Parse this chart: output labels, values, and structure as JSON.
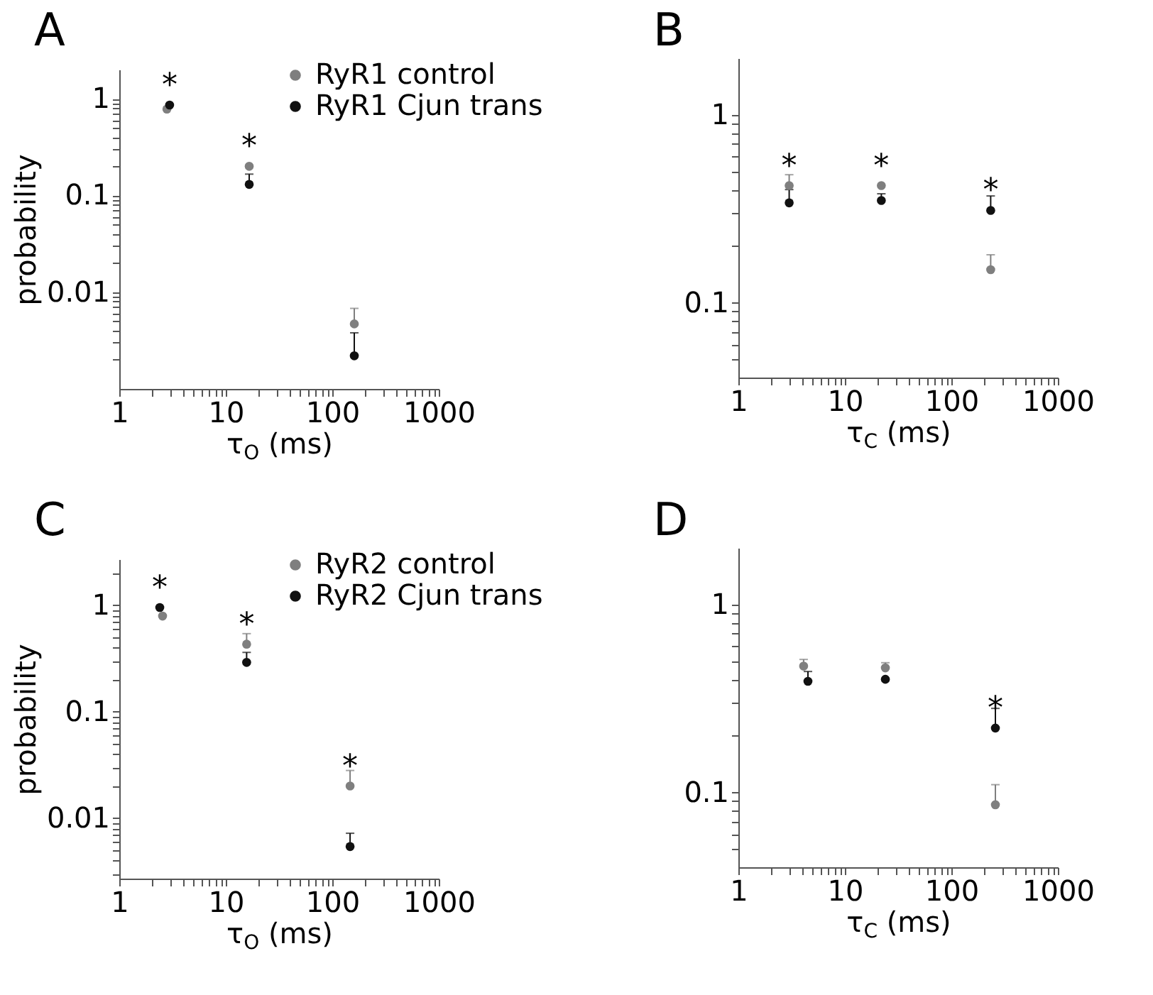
{
  "chart_data": [
    {
      "type": "scatter",
      "title": "A",
      "xlabel": "τ$_{O}$ (ms)",
      "ylabel": "probability",
      "log": "xy",
      "grid": false,
      "legend": "top right",
      "marker": "circle",
      "xlim": [
        1,
        1000
      ],
      "ylim": [
        0.001,
        2
      ],
      "xticks": [
        1,
        {
          "value": 2,
          "label": null
        },
        {
          "value": 3,
          "label": null
        },
        {
          "value": 4,
          "label": null
        },
        {
          "value": 5,
          "label": null
        },
        {
          "value": 6,
          "label": null
        },
        {
          "value": 7,
          "label": null
        },
        {
          "value": 8,
          "label": null
        },
        {
          "value": 9,
          "label": null
        },
        10,
        {
          "value": 20,
          "label": null
        },
        {
          "value": 30,
          "label": null
        },
        {
          "value": 40,
          "label": null
        },
        {
          "value": 50,
          "label": null
        },
        {
          "value": 60,
          "label": null
        },
        {
          "value": 70,
          "label": null
        },
        {
          "value": 80,
          "label": null
        },
        {
          "value": 90,
          "label": null
        },
        100,
        {
          "value": 200,
          "label": null
        },
        {
          "value": 300,
          "label": null
        },
        {
          "value": 400,
          "label": null
        },
        {
          "value": 500,
          "label": null
        },
        {
          "value": 600,
          "label": null
        },
        {
          "value": 700,
          "label": null
        },
        {
          "value": 800,
          "label": null
        },
        {
          "value": 900,
          "label": null
        },
        1000
      ],
      "yticks": [
        {
          "value": 0.002,
          "label": null
        },
        {
          "value": 0.003,
          "label": null
        },
        {
          "value": 0.004,
          "label": null
        },
        {
          "value": 0.005,
          "label": null
        },
        {
          "value": 0.006,
          "label": null
        },
        {
          "value": 0.007,
          "label": null
        },
        {
          "value": 0.008,
          "label": null
        },
        {
          "value": 0.009,
          "label": null
        },
        0.01,
        {
          "value": 0.02,
          "label": null
        },
        {
          "value": 0.03,
          "label": null
        },
        {
          "value": 0.04,
          "label": null
        },
        {
          "value": 0.05,
          "label": null
        },
        {
          "value": 0.06,
          "label": null
        },
        {
          "value": 0.07,
          "label": null
        },
        {
          "value": 0.08,
          "label": null
        },
        {
          "value": 0.09,
          "label": null
        },
        0.1,
        {
          "value": 0.2,
          "label": null
        },
        {
          "value": 0.3,
          "label": null
        },
        {
          "value": 0.4,
          "label": null
        },
        {
          "value": 0.5,
          "label": null
        },
        {
          "value": 0.6,
          "label": null
        },
        {
          "value": 0.7,
          "label": null
        },
        {
          "value": 0.8,
          "label": null
        },
        {
          "value": 0.9,
          "label": null
        },
        1
      ],
      "series": [
        {
          "name": "RyR1 control",
          "color": "#7f7f7f",
          "x": [
            2.8,
            16.6,
            161
          ],
          "values": [
            0.78,
            0.2,
            0.0047
          ],
          "errors": [
            null,
            null,
            [
              0.0047,
              0.0068
            ]
          ]
        },
        {
          "name": "RyR1 Cjun trans",
          "color": "#111111",
          "x": [
            2.97,
            16.6,
            161
          ],
          "values": [
            0.86,
            0.13,
            0.0022
          ],
          "errors": [
            null,
            [
              0.13,
              0.166
            ],
            [
              0.0022,
              0.0038
            ]
          ]
        }
      ],
      "annotations": [
        {
          "text": "*",
          "x": 2.97,
          "y": 0.86
        },
        {
          "text": "*",
          "x": 16.6,
          "y": 0.2
        }
      ]
    },
    {
      "type": "scatter",
      "title": "B",
      "xlabel": "τ$_{C}$ (ms)",
      "log": "xy",
      "grid": false,
      "marker": "circle",
      "xlim": [
        1,
        1000
      ],
      "ylim": [
        0.04,
        2
      ],
      "xticks": [
        1,
        {
          "value": 2,
          "label": null
        },
        {
          "value": 3,
          "label": null
        },
        {
          "value": 4,
          "label": null
        },
        {
          "value": 5,
          "label": null
        },
        {
          "value": 6,
          "label": null
        },
        {
          "value": 7,
          "label": null
        },
        {
          "value": 8,
          "label": null
        },
        {
          "value": 9,
          "label": null
        },
        10,
        {
          "value": 20,
          "label": null
        },
        {
          "value": 30,
          "label": null
        },
        {
          "value": 40,
          "label": null
        },
        {
          "value": 50,
          "label": null
        },
        {
          "value": 60,
          "label": null
        },
        {
          "value": 70,
          "label": null
        },
        {
          "value": 80,
          "label": null
        },
        {
          "value": 90,
          "label": null
        },
        100,
        {
          "value": 200,
          "label": null
        },
        {
          "value": 300,
          "label": null
        },
        {
          "value": 400,
          "label": null
        },
        {
          "value": 500,
          "label": null
        },
        {
          "value": 600,
          "label": null
        },
        {
          "value": 700,
          "label": null
        },
        {
          "value": 800,
          "label": null
        },
        {
          "value": 900,
          "label": null
        },
        1000
      ],
      "yticks": [
        {
          "value": 0.05,
          "label": null
        },
        {
          "value": 0.06,
          "label": null
        },
        {
          "value": 0.07,
          "label": null
        },
        {
          "value": 0.08,
          "label": null
        },
        {
          "value": 0.09,
          "label": null
        },
        0.1,
        {
          "value": 0.2,
          "label": null
        },
        {
          "value": 0.3,
          "label": null
        },
        {
          "value": 0.4,
          "label": null
        },
        {
          "value": 0.5,
          "label": null
        },
        {
          "value": 0.6,
          "label": null
        },
        {
          "value": 0.7,
          "label": null
        },
        {
          "value": 0.8,
          "label": null
        },
        {
          "value": 0.9,
          "label": null
        },
        1
      ],
      "series": [
        {
          "color": "#7f7f7f",
          "x": [
            3,
            22,
            234
          ],
          "values": [
            0.42,
            0.42,
            0.15
          ],
          "errors": [
            [
              0.42,
              0.48
            ],
            null,
            [
              0.15,
              0.18
            ]
          ]
        },
        {
          "color": "#111111",
          "x": [
            3,
            22,
            234
          ],
          "values": [
            0.34,
            0.35,
            0.31
          ],
          "errors": [
            [
              0.34,
              0.4
            ],
            [
              0.35,
              0.38
            ],
            [
              0.31,
              0.37
            ]
          ]
        }
      ],
      "annotations": [
        {
          "text": "*",
          "x": 3,
          "y": 0.42
        },
        {
          "text": "*",
          "x": 22,
          "y": 0.42
        },
        {
          "text": "*",
          "x": 234,
          "y": 0.31
        }
      ]
    },
    {
      "type": "scatter",
      "title": "C",
      "xlabel": "τ$_{O}$ (ms)",
      "ylabel": "probability",
      "log": "xy",
      "grid": false,
      "legend": "top right",
      "marker": "circle",
      "xlim": [
        1,
        1000
      ],
      "ylim": [
        0.0027,
        2.7
      ],
      "xticks": [
        1,
        {
          "value": 2,
          "label": null
        },
        {
          "value": 3,
          "label": null
        },
        {
          "value": 4,
          "label": null
        },
        {
          "value": 5,
          "label": null
        },
        {
          "value": 6,
          "label": null
        },
        {
          "value": 7,
          "label": null
        },
        {
          "value": 8,
          "label": null
        },
        {
          "value": 9,
          "label": null
        },
        10,
        {
          "value": 20,
          "label": null
        },
        {
          "value": 30,
          "label": null
        },
        {
          "value": 40,
          "label": null
        },
        {
          "value": 50,
          "label": null
        },
        {
          "value": 60,
          "label": null
        },
        {
          "value": 70,
          "label": null
        },
        {
          "value": 80,
          "label": null
        },
        {
          "value": 90,
          "label": null
        },
        100,
        {
          "value": 200,
          "label": null
        },
        {
          "value": 300,
          "label": null
        },
        {
          "value": 400,
          "label": null
        },
        {
          "value": 500,
          "label": null
        },
        {
          "value": 600,
          "label": null
        },
        {
          "value": 700,
          "label": null
        },
        {
          "value": 800,
          "label": null
        },
        {
          "value": 900,
          "label": null
        },
        1000
      ],
      "yticks": [
        {
          "value": 0.003,
          "label": null
        },
        {
          "value": 0.004,
          "label": null
        },
        {
          "value": 0.005,
          "label": null
        },
        {
          "value": 0.006,
          "label": null
        },
        {
          "value": 0.007,
          "label": null
        },
        {
          "value": 0.008,
          "label": null
        },
        {
          "value": 0.009,
          "label": null
        },
        0.01,
        {
          "value": 0.02,
          "label": null
        },
        {
          "value": 0.03,
          "label": null
        },
        {
          "value": 0.04,
          "label": null
        },
        {
          "value": 0.05,
          "label": null
        },
        {
          "value": 0.06,
          "label": null
        },
        {
          "value": 0.07,
          "label": null
        },
        {
          "value": 0.08,
          "label": null
        },
        {
          "value": 0.09,
          "label": null
        },
        0.1,
        {
          "value": 0.2,
          "label": null
        },
        {
          "value": 0.3,
          "label": null
        },
        {
          "value": 0.4,
          "label": null
        },
        {
          "value": 0.5,
          "label": null
        },
        {
          "value": 0.6,
          "label": null
        },
        {
          "value": 0.7,
          "label": null
        },
        {
          "value": 0.8,
          "label": null
        },
        {
          "value": 0.9,
          "label": null
        },
        1,
        {
          "value": 2,
          "label": null
        }
      ],
      "series": [
        {
          "name": "RyR2 control",
          "color": "#7f7f7f",
          "x": [
            2.55,
            15.7,
            147
          ],
          "values": [
            0.79,
            0.43,
            0.02
          ],
          "errors": [
            null,
            [
              0.43,
              0.54
            ],
            [
              0.02,
              0.028
            ]
          ]
        },
        {
          "name": "RyR2 Cjun trans",
          "color": "#111111",
          "x": [
            2.4,
            15.7,
            147
          ],
          "values": [
            0.95,
            0.29,
            0.0054
          ],
          "errors": [
            null,
            [
              0.29,
              0.36
            ],
            [
              0.0054,
              0.0072
            ]
          ]
        }
      ],
      "annotations": [
        {
          "text": "*",
          "x": 2.4,
          "y": 0.95
        },
        {
          "text": "*",
          "x": 15.7,
          "y": 0.43
        },
        {
          "text": "*",
          "x": 147,
          "y": 0.02
        }
      ]
    },
    {
      "type": "scatter",
      "title": "D",
      "xlabel": "τ$_{C}$ (ms)",
      "log": "xy",
      "grid": false,
      "marker": "circle",
      "xlim": [
        1,
        1000
      ],
      "ylim": [
        0.04,
        2
      ],
      "xticks": [
        1,
        {
          "value": 2,
          "label": null
        },
        {
          "value": 3,
          "label": null
        },
        {
          "value": 4,
          "label": null
        },
        {
          "value": 5,
          "label": null
        },
        {
          "value": 6,
          "label": null
        },
        {
          "value": 7,
          "label": null
        },
        {
          "value": 8,
          "label": null
        },
        {
          "value": 9,
          "label": null
        },
        10,
        {
          "value": 20,
          "label": null
        },
        {
          "value": 30,
          "label": null
        },
        {
          "value": 40,
          "label": null
        },
        {
          "value": 50,
          "label": null
        },
        {
          "value": 60,
          "label": null
        },
        {
          "value": 70,
          "label": null
        },
        {
          "value": 80,
          "label": null
        },
        {
          "value": 90,
          "label": null
        },
        100,
        {
          "value": 200,
          "label": null
        },
        {
          "value": 300,
          "label": null
        },
        {
          "value": 400,
          "label": null
        },
        {
          "value": 500,
          "label": null
        },
        {
          "value": 600,
          "label": null
        },
        {
          "value": 700,
          "label": null
        },
        {
          "value": 800,
          "label": null
        },
        {
          "value": 900,
          "label": null
        },
        1000
      ],
      "yticks": [
        {
          "value": 0.05,
          "label": null
        },
        {
          "value": 0.06,
          "label": null
        },
        {
          "value": 0.07,
          "label": null
        },
        {
          "value": 0.08,
          "label": null
        },
        {
          "value": 0.09,
          "label": null
        },
        0.1,
        {
          "value": 0.2,
          "label": null
        },
        {
          "value": 0.3,
          "label": null
        },
        {
          "value": 0.4,
          "label": null
        },
        {
          "value": 0.5,
          "label": null
        },
        {
          "value": 0.6,
          "label": null
        },
        {
          "value": 0.7,
          "label": null
        },
        {
          "value": 0.8,
          "label": null
        },
        {
          "value": 0.9,
          "label": null
        },
        1
      ],
      "series": [
        {
          "color": "#7f7f7f",
          "x": [
            4.1,
            24,
            259
          ],
          "values": [
            0.47,
            0.46,
            0.086
          ],
          "errors": [
            [
              0.47,
              0.51
            ],
            [
              0.46,
              0.49
            ],
            [
              0.086,
              0.11
            ]
          ]
        },
        {
          "color": "#111111",
          "x": [
            4.5,
            24,
            259
          ],
          "values": [
            0.39,
            0.4,
            0.22
          ],
          "errors": [
            [
              0.39,
              0.44
            ],
            null,
            [
              0.22,
              0.28
            ]
          ]
        }
      ],
      "annotations": [
        {
          "text": "*",
          "x": 259,
          "y": 0.22
        }
      ]
    }
  ]
}
